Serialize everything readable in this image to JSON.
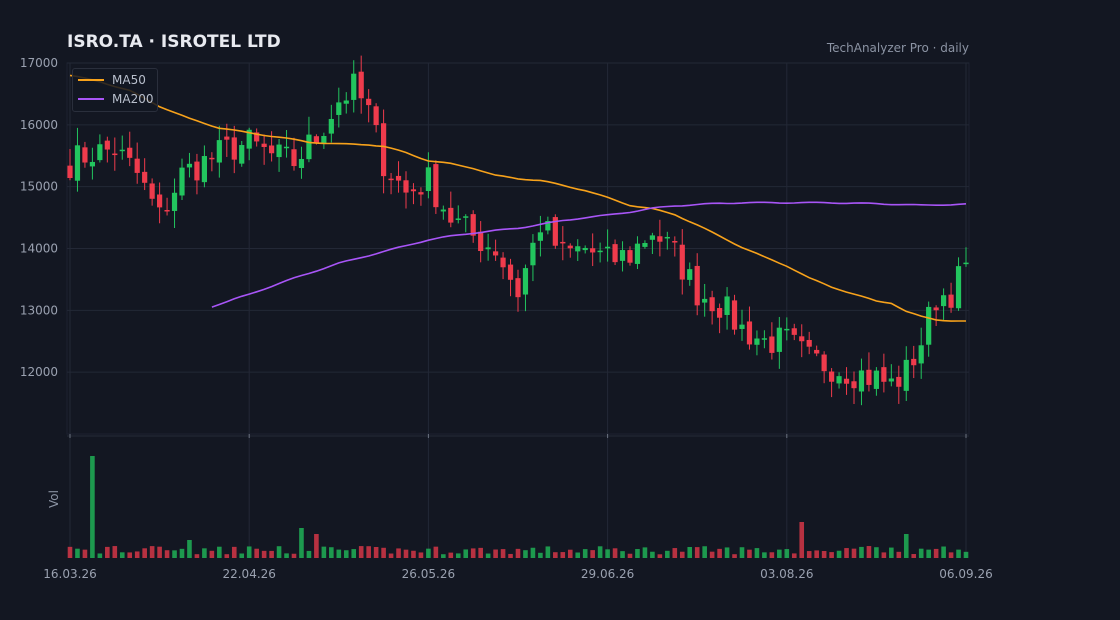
{
  "header": {
    "title": "ISRO.TA  ·  ISROTEL LTD",
    "source": "TechAnalyzer Pro · daily"
  },
  "legend": [
    {
      "label": "MA50",
      "color": "#f7a21b"
    },
    {
      "label": "MA200",
      "color": "#a855f7"
    }
  ],
  "colors": {
    "up": "#22c55e",
    "down": "#ef3b4c",
    "background": "#131722",
    "grid": "#232836"
  },
  "chart_data": {
    "type": "candlestick",
    "title": "ISRO.TA  ·  ISROTEL LTD",
    "price_axis": {
      "ticks": [
        "17000",
        "16000",
        "15000",
        "14000",
        "13000",
        "12000"
      ],
      "ylim": [
        11000,
        17000
      ]
    },
    "volume_axis": {
      "label": "Vol"
    },
    "x_ticks": [
      {
        "label": "16.03.26",
        "index": 0
      },
      {
        "label": "22.04.26",
        "index": 24
      },
      {
        "label": "26.05.26",
        "index": 48
      },
      {
        "label": "29.06.26",
        "index": 72
      },
      {
        "label": "03.08.26",
        "index": 96
      },
      {
        "label": "06.09.26",
        "index": 120
      }
    ],
    "grid": true,
    "legend_position": "top-left",
    "anchors": {
      "close": [
        [
          0,
          15400
        ],
        [
          3,
          15550
        ],
        [
          6,
          15600
        ],
        [
          9,
          15200
        ],
        [
          12,
          14500
        ],
        [
          15,
          15200
        ],
        [
          18,
          15400
        ],
        [
          21,
          15600
        ],
        [
          24,
          15700
        ],
        [
          27,
          15500
        ],
        [
          30,
          15400
        ],
        [
          33,
          15800
        ],
        [
          36,
          16400
        ],
        [
          38,
          16600
        ],
        [
          40,
          16200
        ],
        [
          42,
          15400
        ],
        [
          45,
          14900
        ],
        [
          48,
          15100
        ],
        [
          51,
          14500
        ],
        [
          54,
          14200
        ],
        [
          57,
          14000
        ],
        [
          60,
          13300
        ],
        [
          63,
          14400
        ],
        [
          66,
          13900
        ],
        [
          69,
          14000
        ],
        [
          72,
          13800
        ],
        [
          75,
          13900
        ],
        [
          78,
          14300
        ],
        [
          81,
          13900
        ],
        [
          84,
          13300
        ],
        [
          87,
          13100
        ],
        [
          90,
          12700
        ],
        [
          93,
          12500
        ],
        [
          96,
          12500
        ],
        [
          99,
          12200
        ],
        [
          102,
          12100
        ],
        [
          105,
          12000
        ],
        [
          108,
          11900
        ],
        [
          110,
          11800
        ],
        [
          112,
          12000
        ],
        [
          114,
          12500
        ],
        [
          116,
          13200
        ],
        [
          118,
          13300
        ],
        [
          120,
          13700
        ]
      ],
      "ma50": [
        [
          0,
          16800
        ],
        [
          4,
          16700
        ],
        [
          8,
          16550
        ],
        [
          12,
          16300
        ],
        [
          16,
          16100
        ],
        [
          20,
          15950
        ],
        [
          24,
          15870
        ],
        [
          28,
          15800
        ],
        [
          32,
          15720
        ],
        [
          36,
          15690
        ],
        [
          40,
          15680
        ],
        [
          42,
          15650
        ],
        [
          45,
          15550
        ],
        [
          48,
          15420
        ],
        [
          51,
          15370
        ],
        [
          54,
          15300
        ],
        [
          57,
          15180
        ],
        [
          60,
          15130
        ],
        [
          63,
          15100
        ],
        [
          66,
          15020
        ],
        [
          69,
          14940
        ],
        [
          72,
          14820
        ],
        [
          75,
          14700
        ],
        [
          78,
          14640
        ],
        [
          81,
          14550
        ],
        [
          84,
          14380
        ],
        [
          87,
          14200
        ],
        [
          90,
          14020
        ],
        [
          93,
          13860
        ],
        [
          96,
          13720
        ],
        [
          99,
          13520
        ],
        [
          102,
          13380
        ],
        [
          105,
          13260
        ],
        [
          108,
          13150
        ],
        [
          110,
          13120
        ],
        [
          112,
          12980
        ],
        [
          114,
          12900
        ],
        [
          116,
          12850
        ],
        [
          118,
          12830
        ],
        [
          120,
          12820
        ]
      ],
      "ma200": [
        [
          19,
          13060
        ],
        [
          24,
          13260
        ],
        [
          30,
          13520
        ],
        [
          36,
          13760
        ],
        [
          42,
          13950
        ],
        [
          48,
          14140
        ],
        [
          51,
          14200
        ],
        [
          54,
          14250
        ],
        [
          57,
          14290
        ],
        [
          60,
          14330
        ],
        [
          63,
          14390
        ],
        [
          66,
          14450
        ],
        [
          69,
          14500
        ],
        [
          72,
          14540
        ],
        [
          75,
          14590
        ],
        [
          78,
          14650
        ],
        [
          81,
          14690
        ],
        [
          84,
          14710
        ],
        [
          87,
          14730
        ],
        [
          90,
          14740
        ],
        [
          96,
          14740
        ],
        [
          102,
          14740
        ],
        [
          108,
          14725
        ],
        [
          114,
          14700
        ],
        [
          120,
          14715
        ]
      ],
      "volume_spikes": [
        [
          3,
          17
        ],
        [
          16,
          3
        ],
        [
          31,
          5
        ],
        [
          33,
          4
        ],
        [
          98,
          6
        ],
        [
          112,
          4
        ]
      ]
    }
  }
}
